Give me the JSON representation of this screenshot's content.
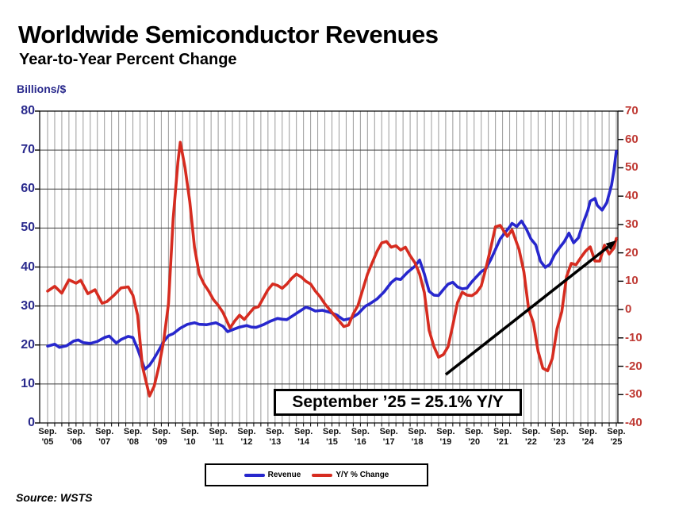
{
  "header": {
    "title": "Worldwide Semiconductor Revenues",
    "subtitle": "Year-to-Year Percent Change"
  },
  "footer": {
    "source": "Source: WSTS"
  },
  "chart_data": {
    "type": "line",
    "title": "Worldwide Semiconductor Revenues",
    "subtitle": "Year-to-Year Percent Change",
    "grid": "quarterly vertical gray lines, horizontal black lines every 10 units",
    "legend_position": "bottom-center",
    "x": {
      "unit": "months since Sep 2005, monthly series Sep '05 - Sep '25",
      "tick_labels": [
        [
          "Sep.",
          "'05"
        ],
        [
          "Sep.",
          "'06"
        ],
        [
          "Sep.",
          "'07"
        ],
        [
          "Sep.",
          "'08"
        ],
        [
          "Sep.",
          "'09"
        ],
        [
          "Sep.",
          "'10"
        ],
        [
          "Sep.",
          "'11"
        ],
        [
          "Sep.",
          "'12"
        ],
        [
          "Sep.",
          "'13"
        ],
        [
          "Sep.",
          "'14"
        ],
        [
          "Sep.",
          "'15"
        ],
        [
          "Sep.",
          "'16"
        ],
        [
          "Sep.",
          "'17"
        ],
        [
          "Sep.",
          "'18"
        ],
        [
          "Sep.",
          "'19"
        ],
        [
          "Sep.",
          "'20"
        ],
        [
          "Sep.",
          "'21"
        ],
        [
          "Sep.",
          "'22"
        ],
        [
          "Sep.",
          "'23"
        ],
        [
          "Sep.",
          "'24"
        ],
        [
          "Sep.",
          "'25"
        ]
      ]
    },
    "y_left": {
      "title": "Billions/$",
      "min": 0,
      "max": 80,
      "ticks": [
        80,
        70,
        60,
        50,
        40,
        30,
        20,
        10,
        0
      ],
      "label_color": "#29298c"
    },
    "y_right": {
      "title": "Y/Y % Change",
      "min": -40,
      "max": 70,
      "ticks": [
        70,
        60,
        50,
        40,
        30,
        20,
        10,
        0,
        -10,
        -20,
        -30,
        -40
      ],
      "label_color": "#bf3a34"
    },
    "series": [
      {
        "name": "Revenue",
        "axis": "left",
        "color": "#2727cd",
        "points": [
          [
            0,
            19.7
          ],
          [
            3,
            20.2
          ],
          [
            5,
            19.4
          ],
          [
            8,
            19.8
          ],
          [
            11,
            21.0
          ],
          [
            13,
            21.3
          ],
          [
            15,
            20.6
          ],
          [
            18,
            20.4
          ],
          [
            21,
            20.9
          ],
          [
            24,
            21.9
          ],
          [
            26,
            22.3
          ],
          [
            29,
            20.5
          ],
          [
            31,
            21.4
          ],
          [
            34,
            22.2
          ],
          [
            36,
            21.9
          ],
          [
            38,
            19.0
          ],
          [
            41,
            13.8
          ],
          [
            43,
            14.8
          ],
          [
            45,
            16.6
          ],
          [
            47,
            18.7
          ],
          [
            49,
            20.9
          ],
          [
            51,
            22.4
          ],
          [
            53,
            22.9
          ],
          [
            56,
            24.3
          ],
          [
            59,
            25.3
          ],
          [
            62,
            25.7
          ],
          [
            64,
            25.3
          ],
          [
            67,
            25.2
          ],
          [
            71,
            25.7
          ],
          [
            74,
            24.8
          ],
          [
            76,
            23.4
          ],
          [
            78,
            23.9
          ],
          [
            81,
            24.6
          ],
          [
            84,
            25.0
          ],
          [
            86,
            24.6
          ],
          [
            88,
            24.5
          ],
          [
            91,
            25.2
          ],
          [
            94,
            26.1
          ],
          [
            97,
            26.8
          ],
          [
            99,
            26.6
          ],
          [
            101,
            26.5
          ],
          [
            104,
            27.7
          ],
          [
            107,
            28.9
          ],
          [
            109,
            29.7
          ],
          [
            111,
            29.3
          ],
          [
            113,
            28.7
          ],
          [
            116,
            28.9
          ],
          [
            119,
            28.4
          ],
          [
            122,
            27.7
          ],
          [
            125,
            26.4
          ],
          [
            128,
            26.8
          ],
          [
            131,
            28.0
          ],
          [
            134,
            29.9
          ],
          [
            136,
            30.6
          ],
          [
            139,
            31.8
          ],
          [
            142,
            33.6
          ],
          [
            145,
            36.0
          ],
          [
            147,
            37.0
          ],
          [
            149,
            36.8
          ],
          [
            152,
            38.7
          ],
          [
            155,
            40.2
          ],
          [
            157,
            41.8
          ],
          [
            159,
            38.2
          ],
          [
            161,
            33.8
          ],
          [
            163,
            32.8
          ],
          [
            165,
            32.7
          ],
          [
            167,
            34.2
          ],
          [
            169,
            35.6
          ],
          [
            171,
            36.1
          ],
          [
            173,
            34.9
          ],
          [
            175,
            34.4
          ],
          [
            177,
            34.6
          ],
          [
            179,
            36.2
          ],
          [
            181,
            37.5
          ],
          [
            183,
            38.8
          ],
          [
            185,
            39.6
          ],
          [
            187,
            41.9
          ],
          [
            189,
            44.5
          ],
          [
            191,
            47.2
          ],
          [
            193,
            48.8
          ],
          [
            195,
            50.3
          ],
          [
            196,
            51.2
          ],
          [
            198,
            50.4
          ],
          [
            200,
            51.8
          ],
          [
            202,
            49.8
          ],
          [
            204,
            47.2
          ],
          [
            206,
            45.7
          ],
          [
            208,
            41.5
          ],
          [
            210,
            39.9
          ],
          [
            212,
            40.7
          ],
          [
            214,
            43.2
          ],
          [
            216,
            44.9
          ],
          [
            218,
            46.5
          ],
          [
            220,
            48.7
          ],
          [
            222,
            46.2
          ],
          [
            224,
            47.5
          ],
          [
            226,
            51.3
          ],
          [
            228,
            54.5
          ],
          [
            229,
            56.9
          ],
          [
            231,
            57.6
          ],
          [
            232,
            55.8
          ],
          [
            234,
            54.6
          ],
          [
            236,
            56.5
          ],
          [
            238,
            61.0
          ],
          [
            239,
            64.8
          ],
          [
            240,
            69.7
          ]
        ]
      },
      {
        "name": "Y/Y % Change",
        "axis": "right",
        "color": "#d62c20",
        "points": [
          [
            0,
            6.5
          ],
          [
            3,
            8.2
          ],
          [
            6,
            5.8
          ],
          [
            9,
            10.5
          ],
          [
            12,
            9.3
          ],
          [
            14,
            10.3
          ],
          [
            17,
            5.6
          ],
          [
            20,
            7.0
          ],
          [
            23,
            2.2
          ],
          [
            25,
            2.8
          ],
          [
            28,
            5.0
          ],
          [
            31,
            7.6
          ],
          [
            34,
            8.0
          ],
          [
            36,
            5.0
          ],
          [
            38,
            -2.0
          ],
          [
            40,
            -20.0
          ],
          [
            43,
            -30.5
          ],
          [
            45,
            -27.0
          ],
          [
            47,
            -20.0
          ],
          [
            49,
            -11.0
          ],
          [
            51,
            2.0
          ],
          [
            53,
            32.0
          ],
          [
            55,
            52.0
          ],
          [
            56,
            59.0
          ],
          [
            58,
            50.0
          ],
          [
            60,
            38.0
          ],
          [
            62,
            22.0
          ],
          [
            64,
            12.5
          ],
          [
            66,
            9.0
          ],
          [
            68,
            6.5
          ],
          [
            70,
            3.5
          ],
          [
            72,
            1.5
          ],
          [
            74,
            -1.0
          ],
          [
            77,
            -6.5
          ],
          [
            79,
            -4.0
          ],
          [
            81,
            -2.0
          ],
          [
            83,
            -3.5
          ],
          [
            85,
            -1.5
          ],
          [
            87,
            0.5
          ],
          [
            89,
            1.0
          ],
          [
            91,
            4.0
          ],
          [
            93,
            7.0
          ],
          [
            95,
            9.0
          ],
          [
            97,
            8.5
          ],
          [
            99,
            7.5
          ],
          [
            101,
            9.0
          ],
          [
            103,
            11.0
          ],
          [
            105,
            12.5
          ],
          [
            107,
            11.5
          ],
          [
            109,
            10.0
          ],
          [
            111,
            9.0
          ],
          [
            113,
            6.5
          ],
          [
            115,
            4.5
          ],
          [
            117,
            2.0
          ],
          [
            119,
            0.0
          ],
          [
            121,
            -2.0
          ],
          [
            123,
            -4.0
          ],
          [
            125,
            -6.0
          ],
          [
            127,
            -5.5
          ],
          [
            129,
            -1.5
          ],
          [
            131,
            1.5
          ],
          [
            133,
            7.0
          ],
          [
            135,
            12.5
          ],
          [
            137,
            16.5
          ],
          [
            139,
            20.5
          ],
          [
            141,
            23.5
          ],
          [
            143,
            24.0
          ],
          [
            145,
            22.0
          ],
          [
            147,
            22.5
          ],
          [
            149,
            21.0
          ],
          [
            151,
            22.0
          ],
          [
            153,
            19.0
          ],
          [
            155,
            16.5
          ],
          [
            157,
            12.5
          ],
          [
            159,
            6.0
          ],
          [
            161,
            -7.3
          ],
          [
            163,
            -13.0
          ],
          [
            165,
            -16.8
          ],
          [
            167,
            -15.9
          ],
          [
            169,
            -13.1
          ],
          [
            171,
            -5.5
          ],
          [
            173,
            2.5
          ],
          [
            175,
            6.1
          ],
          [
            177,
            5.1
          ],
          [
            179,
            4.9
          ],
          [
            181,
            6.0
          ],
          [
            183,
            8.3
          ],
          [
            185,
            14.7
          ],
          [
            187,
            21.7
          ],
          [
            189,
            29.2
          ],
          [
            191,
            29.7
          ],
          [
            194,
            25.8
          ],
          [
            196,
            28.1
          ],
          [
            199,
            21.1
          ],
          [
            201,
            13.3
          ],
          [
            203,
            0.1
          ],
          [
            205,
            -4.6
          ],
          [
            207,
            -14.7
          ],
          [
            209,
            -20.7
          ],
          [
            211,
            -21.6
          ],
          [
            213,
            -17.3
          ],
          [
            215,
            -6.8
          ],
          [
            217,
            -0.7
          ],
          [
            219,
            11.6
          ],
          [
            221,
            16.3
          ],
          [
            223,
            15.8
          ],
          [
            225,
            18.3
          ],
          [
            227,
            20.6
          ],
          [
            229,
            22.1
          ],
          [
            231,
            17.1
          ],
          [
            233,
            17.1
          ],
          [
            235,
            22.7
          ],
          [
            237,
            19.6
          ],
          [
            239,
            21.7
          ],
          [
            240,
            25.1
          ]
        ]
      }
    ],
    "annotation": {
      "text": "September ’25 = 25.1% Y/Y",
      "points_to": "Sep 2025 Y/Y % Change value (25.1%)"
    }
  }
}
